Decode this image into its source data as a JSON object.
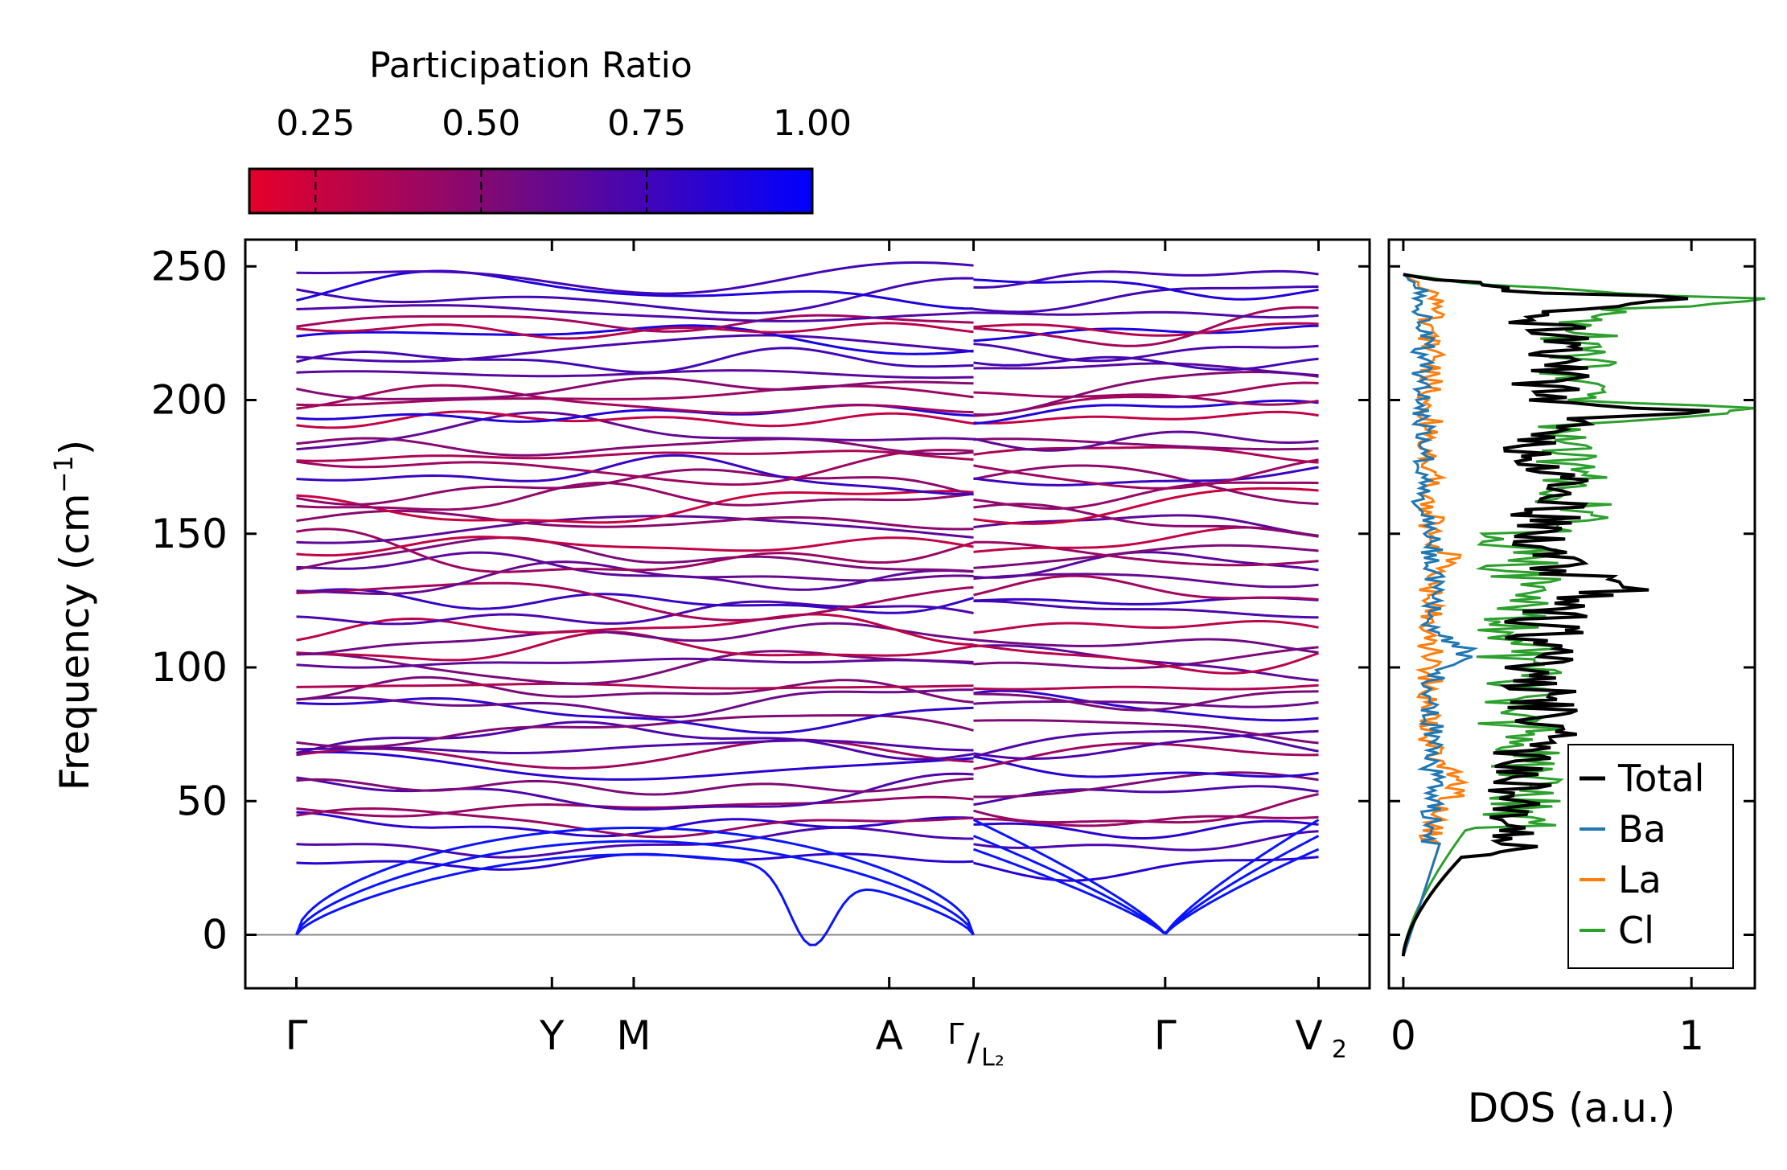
{
  "chart_data": [
    {
      "type": "line",
      "panel": "phonon-band-structure",
      "ylabel": "Frequency (cm",
      "ylabel_sup": "−1",
      "ylabel_tail": ")",
      "ylim": [
        -20,
        260
      ],
      "yticks": [
        0,
        50,
        100,
        150,
        200,
        250
      ],
      "ytick_labels": [
        "0",
        "50",
        "100",
        "150",
        "200",
        "250"
      ],
      "x_range": [
        -0.2,
        4.2
      ],
      "qpoints": [
        {
          "pos": 0.0,
          "label": "Γ"
        },
        {
          "pos": 1.0,
          "label": "Y"
        },
        {
          "pos": 1.32,
          "label": "M"
        },
        {
          "pos": 2.32,
          "label": "A"
        },
        {
          "pos": 2.65,
          "label": "Γ",
          "sub_label": "L₂",
          "slash": "/"
        },
        {
          "pos": 3.4,
          "label": "Γ"
        },
        {
          "pos": 4.0,
          "label": "V",
          "sub_label": "2"
        }
      ],
      "zero_line": 0,
      "band_count": 54,
      "band_range": [
        30,
        245
      ],
      "acoustic_branch_tops_left": [
        30,
        35,
        40
      ],
      "acoustic_branch_tops_right": [
        32,
        37,
        43
      ],
      "imaginary_dip": {
        "x": 2.02,
        "min": -4
      },
      "colorbar": {
        "title": "Participation Ratio",
        "range": [
          0.15,
          1.0
        ],
        "ticks": [
          0.25,
          0.5,
          0.75,
          1.0
        ],
        "tick_labels": [
          "0.25",
          "0.50",
          "0.75",
          "1.00"
        ],
        "low_color": "#e6002a",
        "mid_color": "#7a0a7a",
        "high_color": "#0000ff"
      }
    },
    {
      "type": "line",
      "panel": "density-of-states",
      "xlabel": "DOS (a.u.)",
      "xlim": [
        -0.05,
        1.22
      ],
      "xticks": [
        0,
        1
      ],
      "xtick_labels": [
        "0",
        "1"
      ],
      "ylim": [
        -20,
        260
      ],
      "series": [
        {
          "name": "Total",
          "color": "#000000",
          "peak_value": 1.15,
          "peak_freq": 196
        },
        {
          "name": "Ba",
          "color": "#1f77b4",
          "peak_value": 0.2,
          "peak_freq": 105
        },
        {
          "name": "La",
          "color": "#ff7f0e",
          "peak_value": 0.18,
          "peak_freq": 140
        },
        {
          "name": "Cl",
          "color": "#2ca02c",
          "peak_value": 1.06,
          "peak_freq": 237
        }
      ],
      "legend_position": "lower-right"
    }
  ]
}
